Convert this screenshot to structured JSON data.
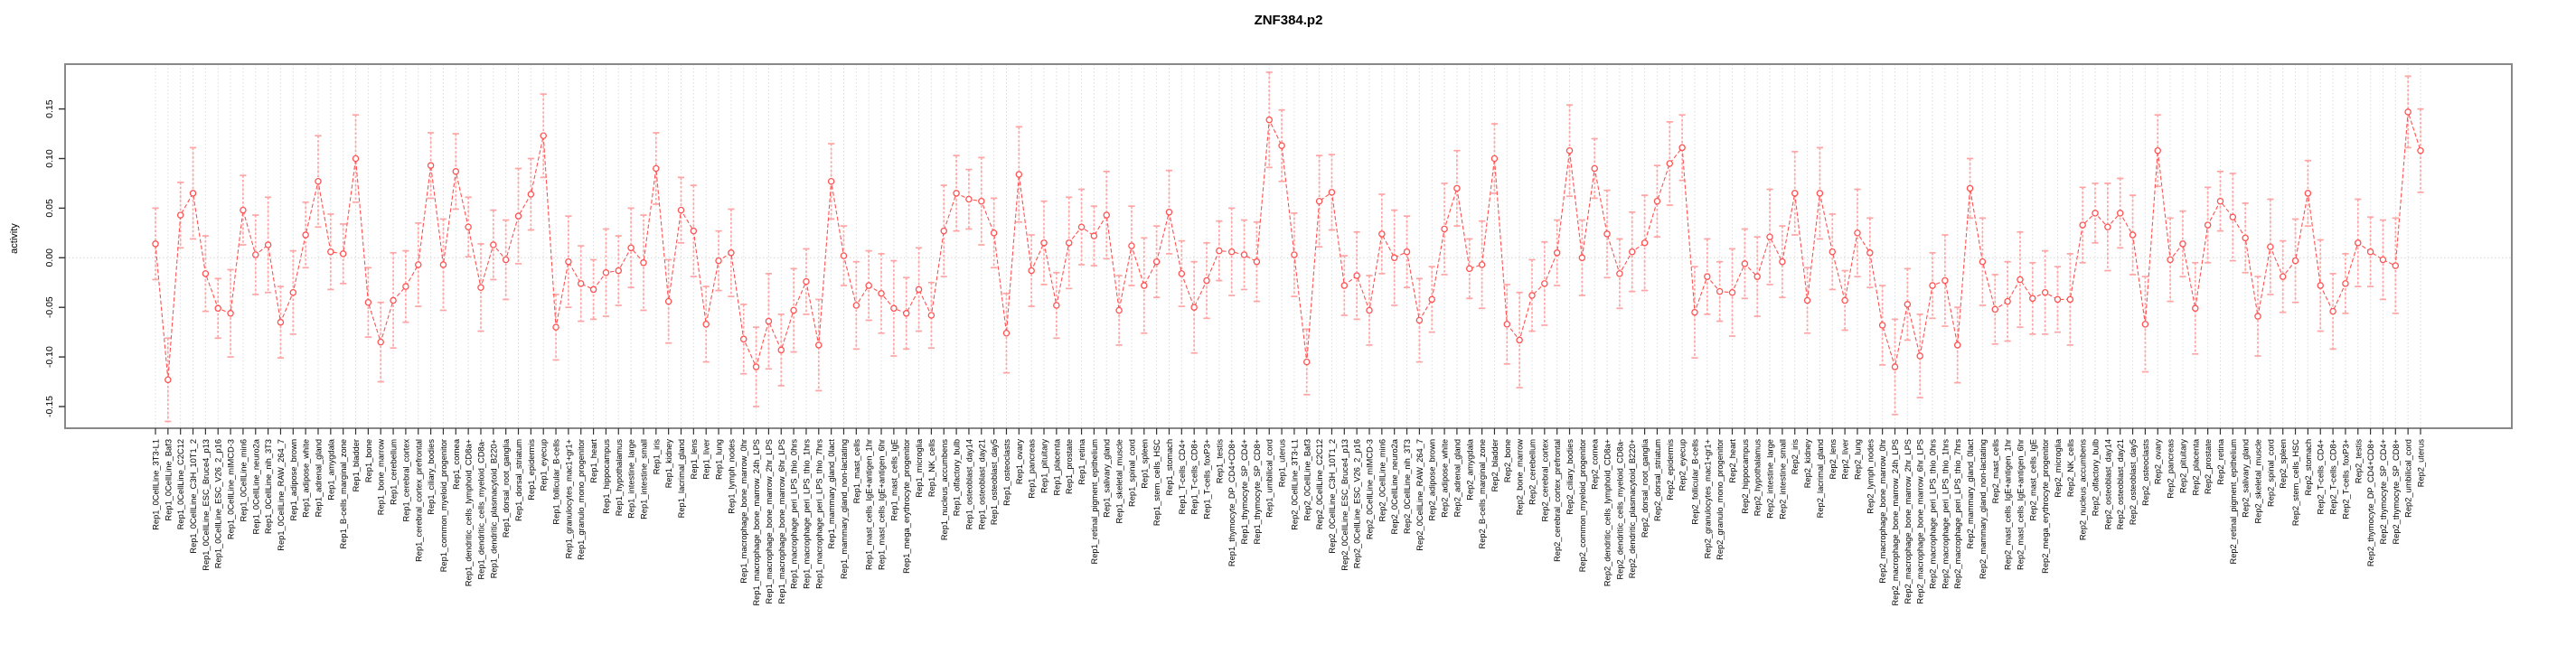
{
  "title": "ZNF384.p2",
  "chart_data": {
    "type": "line",
    "title": "ZNF384.p2",
    "ylabel": "activity",
    "xlabel": "",
    "ylim": [
      -0.175,
      0.175
    ],
    "ytick_values": [
      0.15,
      0.1,
      0.05,
      0.0,
      -0.05,
      -0.1,
      -0.15
    ],
    "ytick_labels": [
      "0.15",
      "0.10",
      "0.05",
      "0.00",
      "-0.05",
      "-0.10",
      "-0.15"
    ],
    "legend": "none",
    "grid": "dotted vertical gridline per category; dotted horizontal line at y=0",
    "marker": "open-circle",
    "error_bars": true,
    "series_name": "activity",
    "categories": [
      "Rep1_0CellLine_3T3-L1",
      "Rep1_0CellLine_Baf3",
      "Rep1_0CellLine_C2C12",
      "Rep1_0CellLine_C3H_10T1_2",
      "Rep1_0CellLine_ESC_Bruce4_p13",
      "Rep1_0CellLine_ESC_V26_2_p16",
      "Rep1_0CellLine_mIMCD-3",
      "Rep1_0CellLine_min6",
      "Rep1_0CellLine_neuro2a",
      "Rep1_0CellLine_nih_3T3",
      "Rep1_0CellLine_RAW_264_7",
      "Rep1_adipose_brown",
      "Rep1_adipose_white",
      "Rep1_adrenal_gland",
      "Rep1_amygdala",
      "Rep1_B-cells_marginal_zone",
      "Rep1_bladder",
      "Rep1_bone",
      "Rep1_bone_marrow",
      "Rep1_cerebellum",
      "Rep1_cerebral_cortex",
      "Rep1_cerebral_cortex_prefrontal",
      "Rep1_ciliary_bodies",
      "Rep1_common_myeloid_progenitor",
      "Rep1_cornea",
      "Rep1_dendritic_cells_lymphoid_CD8a+",
      "Rep1_dendritic_cells_myeloid_CD8a-",
      "Rep1_dendritic_plasmacytoid_B220+",
      "Rep1_dorsal_root_ganglia",
      "Rep1_dorsal_striatum",
      "Rep1_epidermis",
      "Rep1_eyecup",
      "Rep1_follicular_B-cells",
      "Rep1_granulocytes_mac1+gr1+",
      "Rep1_granulo_mono_progenitor",
      "Rep1_heart",
      "Rep1_hippocampus",
      "Rep1_hypothalamus",
      "Rep1_intestine_large",
      "Rep1_intestine_small",
      "Rep1_iris",
      "Rep1_kidney",
      "Rep1_lacrimal_gland",
      "Rep1_lens",
      "Rep1_liver",
      "Rep1_lung",
      "Rep1_lymph_nodes",
      "Rep1_macrophage_bone_marrow_0hr",
      "Rep1_macrophage_bone_marrow_24h_LPS",
      "Rep1_macrophage_bone_marrow_2hr_LPS",
      "Rep1_macrophage_bone_marrow_6hr_LPS",
      "Rep1_macrophage_peri_LPS_thio_0hrs",
      "Rep1_macrophage_peri_LPS_thio_1hrs",
      "Rep1_macrophage_peri_LPS_thio_7hrs",
      "Rep1_mammary_gland_0lact",
      "Rep1_mammary_gland_non-lactating",
      "Rep1_mast_cells",
      "Rep1_mast_cells_IgE+antigen_1hr",
      "Rep1_mast_cells_IgE+antigen_6hr",
      "Rep1_mast_cells_IgE",
      "Rep1_mega_erythrocyte_progenitor",
      "Rep1_microglia",
      "Rep1_NK_cells",
      "Rep1_nucleus_accumbens",
      "Rep1_olfactory_bulb",
      "Rep1_osteoblast_day14",
      "Rep1_osteoblast_day21",
      "Rep1_osteoblast_day5",
      "Rep1_osteoclasts",
      "Rep1_ovary",
      "Rep1_pancreas",
      "Rep1_pituitary",
      "Rep1_placenta",
      "Rep1_prostate",
      "Rep1_retina",
      "Rep1_retinal_pigment_epithelium",
      "Rep1_salivary_gland",
      "Rep1_skeletal_muscle",
      "Rep1_spinal_cord",
      "Rep1_spleen",
      "Rep1_stem_cells_HSC",
      "Rep1_stomach",
      "Rep1_T-cells_CD4+",
      "Rep1_T-cells_CD8+",
      "Rep1_T-cells_foxP3+",
      "Rep1_testis",
      "Rep1_thymocyte_DP_CD4+CD8+",
      "Rep1_thymocyte_SP_CD4+",
      "Rep1_thymocyte_SP_CD8+",
      "Rep1_umbilical_cord",
      "Rep1_uterus",
      "Rep2_0CellLine_3T3-L1",
      "Rep2_0CellLine_Baf3",
      "Rep2_0CellLine_C2C12",
      "Rep2_0CellLine_C3H_10T1_2",
      "Rep2_0CellLine_ESC_Bruce4_p13",
      "Rep2_0CellLine_ESC_V26_2_p16",
      "Rep2_0CellLine_mIMCD-3",
      "Rep2_0CellLine_min6",
      "Rep2_0CellLine_neuro2a",
      "Rep2_0CellLine_nih_3T3",
      "Rep2_0CellLine_RAW_264_7",
      "Rep2_adipose_brown",
      "Rep2_adipose_white",
      "Rep2_adrenal_gland",
      "Rep2_amygdala",
      "Rep2_B-cells_marginal_zone",
      "Rep2_bladder",
      "Rep2_bone",
      "Rep2_bone_marrow",
      "Rep2_cerebellum",
      "Rep2_cerebral_cortex",
      "Rep2_cerebral_cortex_prefrontal",
      "Rep2_ciliary_bodies",
      "Rep2_common_myeloid_progenitor",
      "Rep2_cornea",
      "Rep2_dendritic_cells_lymphoid_CD8a+",
      "Rep2_dendritic_cells_myeloid_CD8a-",
      "Rep2_dendritic_plasmacytoid_B220+",
      "Rep2_dorsal_root_ganglia",
      "Rep2_dorsal_striatum",
      "Rep2_epidermis",
      "Rep2_eyecup",
      "Rep2_follicular_B-cells",
      "Rep2_granulocytes_mac1+gr1+",
      "Rep2_granulo_mono_progenitor",
      "Rep2_heart",
      "Rep2_hippocampus",
      "Rep2_hypothalamus",
      "Rep2_intestine_large",
      "Rep2_intestine_small",
      "Rep2_iris",
      "Rep2_kidney",
      "Rep2_lacrimal_gland",
      "Rep2_lens",
      "Rep2_liver",
      "Rep2_lung",
      "Rep2_lymph_nodes",
      "Rep2_macrophage_bone_marrow_0hr",
      "Rep2_macrophage_bone_marrow_24h_LPS",
      "Rep2_macrophage_bone_marrow_2hr_LPS",
      "Rep2_macrophage_bone_marrow_6hr_LPS",
      "Rep2_macrophage_peri_LPS_thio_0hrs",
      "Rep2_macrophage_peri_LPS_thio_1hrs",
      "Rep2_macrophage_peri_LPS_thio_7hrs",
      "Rep2_mammary_gland_0lact",
      "Rep2_mammary_gland_non-lactating",
      "Rep2_mast_cells",
      "Rep2_mast_cells_IgE+antigen_1hr",
      "Rep2_mast_cells_IgE+antigen_6hr",
      "Rep2_mast_cells_IgE",
      "Rep2_mega_erythrocyte_progenitor",
      "Rep2_microglia",
      "Rep2_NK_cells",
      "Rep2_nucleus_accumbens",
      "Rep2_olfactory_bulb",
      "Rep2_osteoblast_day14",
      "Rep2_osteoblast_day21",
      "Rep2_osteoblast_day5",
      "Rep2_osteoclasts",
      "Rep2_ovary",
      "Rep2_pancreas",
      "Rep2_pituitary",
      "Rep2_placenta",
      "Rep2_prostate",
      "Rep2_retina",
      "Rep2_retinal_pigment_epithelium",
      "Rep2_salivary_gland",
      "Rep2_skeletal_muscle",
      "Rep2_spinal_cord",
      "Rep2_spleen",
      "Rep2_stem_cells_HSC",
      "Rep2_stomach",
      "Rep2_T-cells_CD4+",
      "Rep2_T-cells_CD8+",
      "Rep2_T-cells_foxP3+",
      "Rep2_testis",
      "Rep2_thymocyte_DP_CD4+CD8+",
      "Rep2_thymocyte_SP_CD4+",
      "Rep2_thymocyte_SP_CD8+",
      "Rep2_umbilical_cord",
      "Rep2_uterus"
    ],
    "values": [
      0.014,
      -0.123,
      0.043,
      0.065,
      -0.016,
      -0.051,
      -0.056,
      0.048,
      0.003,
      0.013,
      -0.065,
      -0.035,
      0.023,
      0.077,
      0.006,
      0.004,
      0.1,
      -0.045,
      -0.085,
      -0.043,
      -0.029,
      -0.007,
      0.093,
      -0.007,
      0.087,
      0.031,
      -0.03,
      0.013,
      -0.002,
      0.042,
      0.064,
      0.123,
      -0.07,
      -0.004,
      -0.026,
      -0.032,
      -0.015,
      -0.013,
      0.01,
      -0.005,
      0.09,
      -0.044,
      0.048,
      0.027,
      -0.067,
      -0.003,
      0.005,
      -0.082,
      -0.11,
      -0.064,
      -0.093,
      -0.053,
      -0.024,
      -0.088,
      0.077,
      0.002,
      -0.048,
      -0.028,
      -0.036,
      -0.051,
      -0.056,
      -0.032,
      -0.058,
      0.027,
      0.065,
      0.059,
      0.057,
      0.025,
      -0.076,
      0.084,
      -0.013,
      0.015,
      -0.048,
      0.015,
      0.031,
      0.022,
      0.043,
      -0.053,
      0.012,
      -0.028,
      -0.004,
      0.046,
      -0.016,
      -0.05,
      -0.023,
      0.007,
      0.006,
      0.003,
      -0.004,
      0.139,
      0.113,
      0.003,
      -0.105,
      0.057,
      0.066,
      -0.028,
      -0.018,
      -0.053,
      0.024,
      0.0,
      0.006,
      -0.063,
      -0.042,
      0.029,
      0.07,
      -0.011,
      -0.007,
      0.1,
      -0.067,
      -0.083,
      -0.038,
      -0.026,
      0.005,
      0.108,
      0.0,
      0.09,
      0.024,
      -0.016,
      0.006,
      0.015,
      0.057,
      0.095,
      0.111,
      -0.055,
      -0.019,
      -0.034,
      -0.035,
      -0.006,
      -0.019,
      0.021,
      -0.004,
      0.065,
      -0.043,
      0.065,
      0.006,
      -0.043,
      0.025,
      0.005,
      -0.068,
      -0.11,
      -0.047,
      -0.099,
      -0.028,
      -0.023,
      -0.088,
      0.07,
      -0.004,
      -0.052,
      -0.044,
      -0.022,
      -0.041,
      -0.035,
      -0.042,
      -0.042,
      0.033,
      0.045,
      0.031,
      0.045,
      0.023,
      -0.067,
      0.108,
      -0.002,
      0.014,
      -0.051,
      0.033,
      0.057,
      0.041,
      0.02,
      -0.059,
      0.011,
      -0.019,
      -0.003,
      0.065,
      -0.028,
      -0.054,
      -0.026,
      0.015,
      0.006,
      -0.002,
      -0.008,
      0.147,
      0.108
    ],
    "errors": [
      0.036,
      0.042,
      0.033,
      0.046,
      0.038,
      0.03,
      0.044,
      0.035,
      0.04,
      0.048,
      0.036,
      0.042,
      0.033,
      0.046,
      0.038,
      0.03,
      0.044,
      0.035,
      0.04,
      0.048,
      0.036,
      0.042,
      0.033,
      0.046,
      0.038,
      0.03,
      0.044,
      0.035,
      0.04,
      0.048,
      0.036,
      0.042,
      0.033,
      0.046,
      0.038,
      0.03,
      0.044,
      0.035,
      0.04,
      0.048,
      0.036,
      0.042,
      0.033,
      0.046,
      0.038,
      0.03,
      0.044,
      0.035,
      0.04,
      0.048,
      0.036,
      0.042,
      0.033,
      0.046,
      0.038,
      0.03,
      0.044,
      0.035,
      0.04,
      0.048,
      0.036,
      0.042,
      0.033,
      0.046,
      0.038,
      0.03,
      0.044,
      0.035,
      0.04,
      0.048,
      0.036,
      0.042,
      0.033,
      0.046,
      0.038,
      0.03,
      0.044,
      0.035,
      0.04,
      0.048,
      0.036,
      0.042,
      0.033,
      0.046,
      0.038,
      0.03,
      0.044,
      0.035,
      0.04,
      0.048,
      0.036,
      0.042,
      0.033,
      0.046,
      0.038,
      0.03,
      0.044,
      0.035,
      0.04,
      0.048,
      0.036,
      0.042,
      0.033,
      0.046,
      0.038,
      0.03,
      0.044,
      0.035,
      0.04,
      0.048,
      0.036,
      0.042,
      0.033,
      0.046,
      0.038,
      0.03,
      0.044,
      0.035,
      0.04,
      0.048,
      0.036,
      0.042,
      0.033,
      0.046,
      0.038,
      0.03,
      0.044,
      0.035,
      0.04,
      0.048,
      0.036,
      0.042,
      0.033,
      0.046,
      0.038,
      0.03,
      0.044,
      0.035,
      0.04,
      0.048,
      0.036,
      0.042,
      0.033,
      0.046,
      0.038,
      0.03,
      0.044,
      0.035,
      0.04,
      0.048,
      0.036,
      0.042,
      0.033,
      0.046,
      0.038,
      0.03,
      0.044,
      0.035,
      0.04,
      0.048,
      0.036,
      0.042,
      0.033,
      0.046,
      0.038,
      0.03,
      0.044,
      0.035,
      0.04,
      0.048,
      0.036,
      0.042,
      0.033,
      0.046,
      0.038,
      0.03,
      0.044,
      0.035,
      0.04,
      0.048,
      0.036,
      0.042
    ]
  },
  "colors": {
    "point_line": "#ff5252",
    "error_bar": "#ffa4a4",
    "gridline": "#dcdcdc",
    "zero_line": "#d8d8d8",
    "box_border": "#888888",
    "tick": "#333333",
    "text": "#000000",
    "background": "#ffffff"
  }
}
